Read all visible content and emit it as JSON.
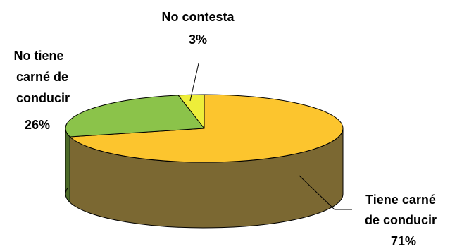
{
  "chart_data": {
    "type": "pie",
    "title": "",
    "slices": [
      {
        "label_lines": [
          "Tiene carné",
          "de conducir"
        ],
        "value": 71,
        "value_text": "71%",
        "color": "#fcc52e",
        "side_color": "#7b6832"
      },
      {
        "label_lines": [
          "No tiene",
          "carné de",
          "conducir"
        ],
        "value": 26,
        "value_text": "26%",
        "color": "#8bc34a",
        "side_color": "#4d6b29"
      },
      {
        "label_lines": [
          "No contesta"
        ],
        "value": 3,
        "value_text": "3%",
        "color": "#eeee3a",
        "side_color": "#8a8a22"
      }
    ]
  }
}
